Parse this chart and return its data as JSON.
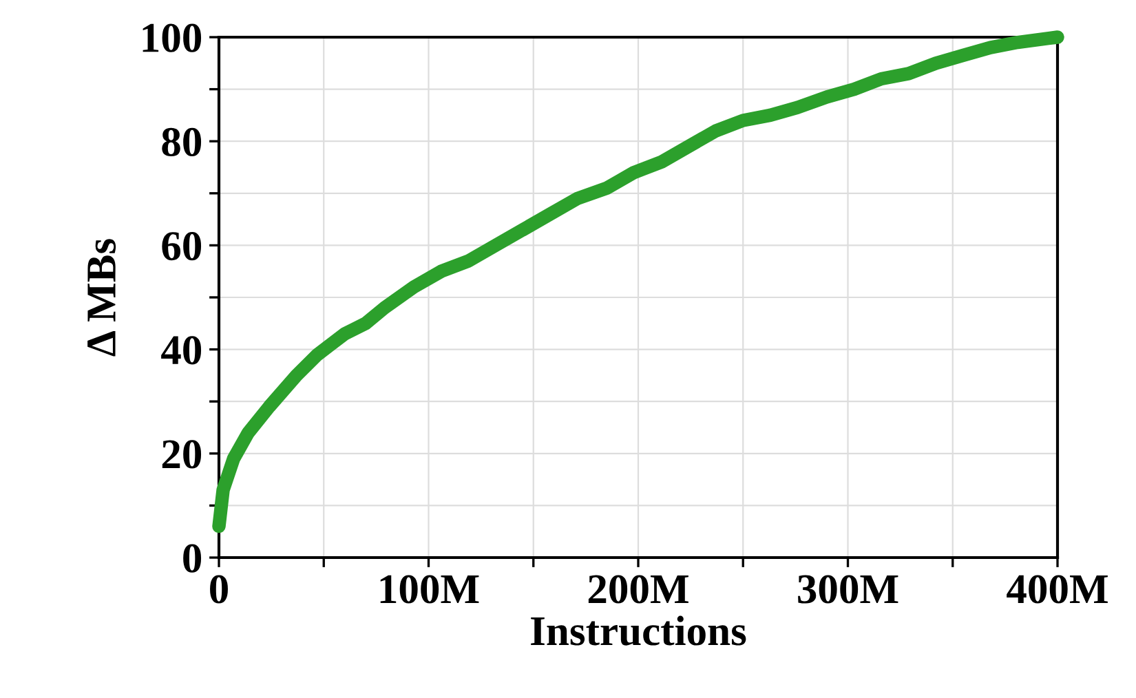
{
  "chart_data": {
    "type": "line",
    "xlabel": "Instructions",
    "ylabel": "Δ MBs",
    "x": [
      0,
      2000000,
      7000000,
      14000000,
      24000000,
      37000000,
      47000000,
      60000000,
      70000000,
      79000000,
      93000000,
      106000000,
      119000000,
      132000000,
      145000000,
      158000000,
      171000000,
      185000000,
      198000000,
      211000000,
      224000000,
      237000000,
      250000000,
      263000000,
      276000000,
      290000000,
      303000000,
      316000000,
      329000000,
      342000000,
      355000000,
      368000000,
      381000000,
      400000000
    ],
    "series": [
      {
        "color": "#2ca02c",
        "values": [
          6,
          13,
          19,
          24,
          29,
          35,
          39,
          43,
          45,
          48,
          52,
          55,
          57,
          60,
          63,
          66,
          69,
          71,
          74,
          76,
          79,
          82,
          84,
          85,
          86.5,
          88.5,
          90,
          92,
          93,
          95,
          96.5,
          98,
          99,
          100
        ]
      }
    ],
    "xlim": [
      0,
      400000000
    ],
    "ylim": [
      0,
      100
    ],
    "xticks": [
      {
        "value": 0,
        "label": "0"
      },
      {
        "value": 50000000,
        "label": null
      },
      {
        "value": 100000000,
        "label": "100M"
      },
      {
        "value": 150000000,
        "label": null
      },
      {
        "value": 200000000,
        "label": "200M"
      },
      {
        "value": 250000000,
        "label": null
      },
      {
        "value": 300000000,
        "label": "300M"
      },
      {
        "value": 350000000,
        "label": null
      },
      {
        "value": 400000000,
        "label": "400M"
      }
    ],
    "yticks": [
      0,
      {
        "value": 10,
        "label": null
      },
      20,
      {
        "value": 30,
        "label": null
      },
      40,
      {
        "value": 50,
        "label": null
      },
      60,
      {
        "value": 70,
        "label": null
      },
      80,
      {
        "value": 90,
        "label": null
      },
      100
    ],
    "grid": true,
    "line_style": "solid",
    "marker": "none"
  }
}
